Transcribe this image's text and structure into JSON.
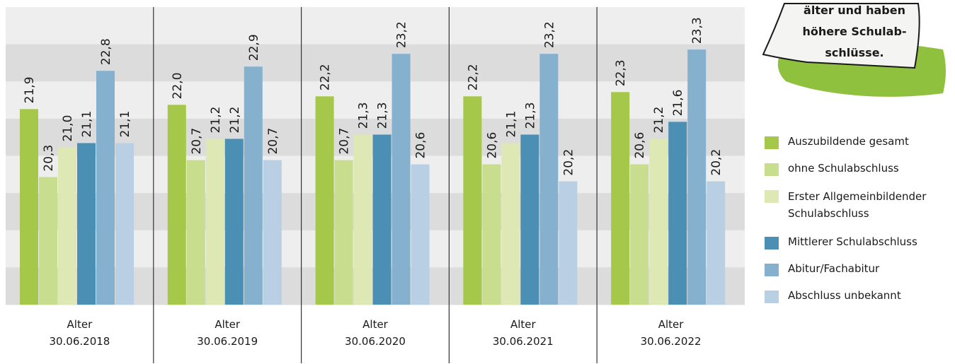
{
  "chart_data": {
    "type": "bar",
    "categories": [
      [
        "Alter",
        "30.06.2018"
      ],
      [
        "Alter",
        "30.06.2019"
      ],
      [
        "Alter",
        "30.06.2020"
      ],
      [
        "Alter",
        "30.06.2021"
      ],
      [
        "Alter",
        "30.06.2022"
      ]
    ],
    "series": [
      {
        "name": "Auszubildende gesamt",
        "color": "#a6c84a",
        "values": [
          21.9,
          22.0,
          22.2,
          22.2,
          22.3
        ]
      },
      {
        "name": "ohne Schulabschluss",
        "color": "#c9dd8f",
        "values": [
          20.3,
          20.7,
          20.7,
          20.6,
          20.6
        ]
      },
      {
        "name": "Erster Allgemeinbildender Schulabschluss",
        "color": "#dde8b4",
        "values": [
          21.0,
          21.2,
          21.3,
          21.1,
          21.2
        ]
      },
      {
        "name": "Mittlerer Schulabschluss",
        "color": "#4b8fb5",
        "values": [
          21.1,
          21.2,
          21.3,
          21.3,
          21.6
        ]
      },
      {
        "name": "Abitur/Fachabitur",
        "color": "#86b1ce",
        "values": [
          22.8,
          22.9,
          23.2,
          23.2,
          23.3
        ]
      },
      {
        "name": "Abschluss unbekannt",
        "color": "#b9d0e4",
        "values": [
          21.1,
          20.7,
          20.6,
          20.2,
          20.2
        ]
      }
    ],
    "value_labels": [
      [
        "21,9",
        "20,3",
        "21,0",
        "21,1",
        "22,8",
        "21,1"
      ],
      [
        "22,0",
        "20,7",
        "21,2",
        "21,2",
        "22,9",
        "20,7"
      ],
      [
        "22,2",
        "20,7",
        "21,3",
        "21,3",
        "23,2",
        "20,6"
      ],
      [
        "22,2",
        "20,6",
        "21,1",
        "21,3",
        "23,2",
        "20,2"
      ],
      [
        "22,3",
        "20,6",
        "21,2",
        "21,6",
        "23,3",
        "20,2"
      ]
    ],
    "ylim": [
      17.3,
      24.3
    ],
    "grid": "alternating horizontal bands",
    "legend": "right"
  },
  "note": {
    "lines": [
      "älter und haben",
      "höhere Schulab-",
      "schlüsse."
    ]
  }
}
